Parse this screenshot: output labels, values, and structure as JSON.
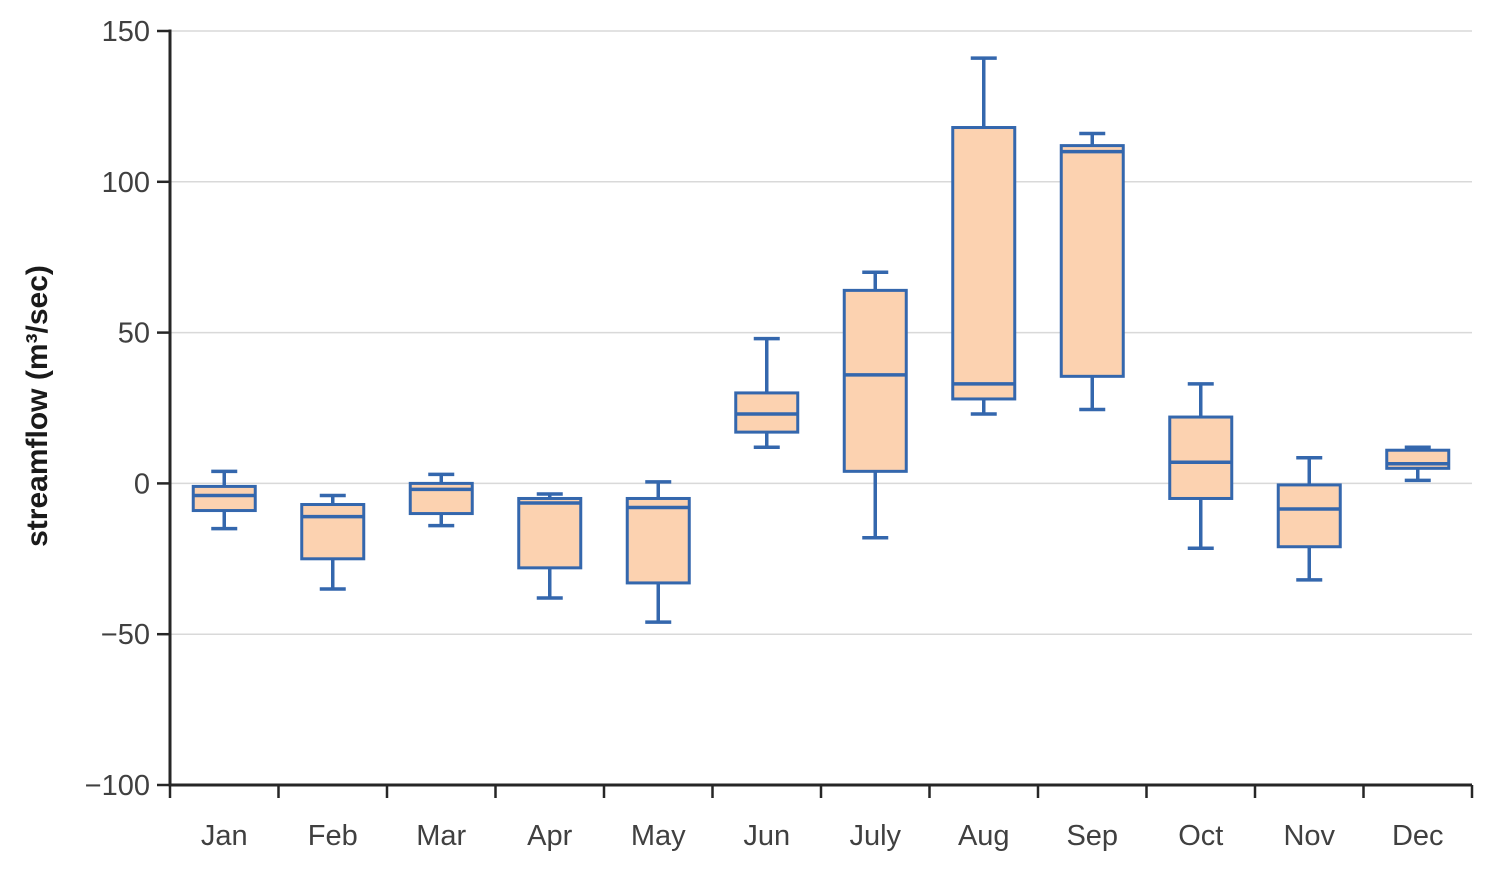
{
  "chart_data": {
    "type": "boxplot",
    "title": "",
    "xlabel": "",
    "ylabel": "streamflow (m³/sec)",
    "categories": [
      "Jan",
      "Feb",
      "Mar",
      "Apr",
      "May",
      "Jun",
      "July",
      "Aug",
      "Sep",
      "Oct",
      "Nov",
      "Dec"
    ],
    "ylim": [
      -100,
      150
    ],
    "yticks": [
      {
        "value": -100,
        "label": "−100"
      },
      {
        "value": -50,
        "label": "−50"
      },
      {
        "value": 0,
        "label": "0"
      },
      {
        "value": 50,
        "label": "50"
      },
      {
        "value": 100,
        "label": "100"
      },
      {
        "value": 150,
        "label": "150"
      }
    ],
    "grid": true,
    "legend_position": "none",
    "boxes": [
      {
        "category": "Jan",
        "whisker_low": -15,
        "q1": -9,
        "median": -4,
        "q3": -1,
        "whisker_high": 4
      },
      {
        "category": "Feb",
        "whisker_low": -35,
        "q1": -25,
        "median": -11,
        "q3": -7,
        "whisker_high": -4
      },
      {
        "category": "Mar",
        "whisker_low": -14,
        "q1": -10,
        "median": -2,
        "q3": 0,
        "whisker_high": 3
      },
      {
        "category": "Apr",
        "whisker_low": -38,
        "q1": -28,
        "median": -6.5,
        "q3": -5,
        "whisker_high": -3.5
      },
      {
        "category": "May",
        "whisker_low": -46,
        "q1": -33,
        "median": -8,
        "q3": -5,
        "whisker_high": 0.5
      },
      {
        "category": "Jun",
        "whisker_low": 12,
        "q1": 17,
        "median": 23,
        "q3": 30,
        "whisker_high": 48
      },
      {
        "category": "July",
        "whisker_low": -18,
        "q1": 4,
        "median": 36,
        "q3": 64,
        "whisker_high": 70
      },
      {
        "category": "Aug",
        "whisker_low": 23,
        "q1": 28,
        "median": 33,
        "q3": 118,
        "whisker_high": 141
      },
      {
        "category": "Sep",
        "whisker_low": 24.5,
        "q1": 35.5,
        "median": 110,
        "q3": 112,
        "whisker_high": 116
      },
      {
        "category": "Oct",
        "whisker_low": -21.5,
        "q1": -5,
        "median": 7,
        "q3": 22,
        "whisker_high": 33
      },
      {
        "category": "Nov",
        "whisker_low": -32,
        "q1": -21,
        "median": -8.5,
        "q3": -0.5,
        "whisker_high": 8.5
      },
      {
        "category": "Dec",
        "whisker_low": 1,
        "q1": 5,
        "median": 6.5,
        "q3": 11,
        "whisker_high": 12
      }
    ],
    "colors": {
      "box_fill": "#fcd2b0",
      "box_border": "#3467ad",
      "median_line": "#3467ad",
      "whisker": "#3467ad",
      "grid_line": "#d9d9d9",
      "axis_line": "#262626",
      "tick_label": "#404040",
      "background": "#ffffff"
    }
  }
}
